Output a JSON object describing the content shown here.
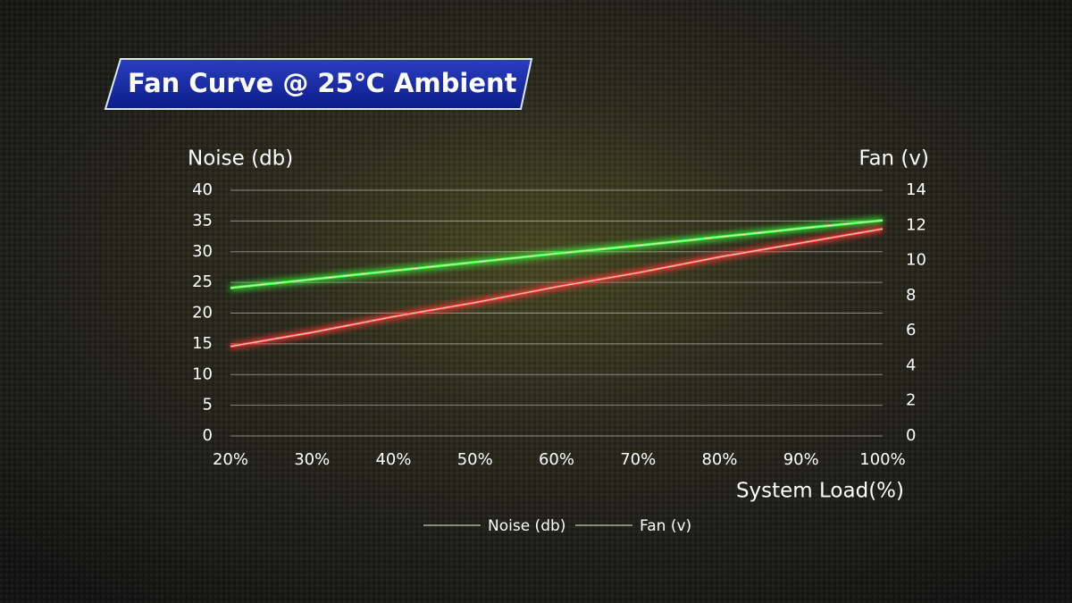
{
  "chart_data": {
    "type": "line",
    "title": "Fan Curve @ 25℃  Ambient",
    "y_label": "Noise (db)",
    "y2_label": "Fan (v)",
    "x_label": "System Load(%)",
    "categories": [
      "20%",
      "30%",
      "40%",
      "50%",
      "60%",
      "70%",
      "80%",
      "90%",
      "100%"
    ],
    "series": [
      {
        "name": "Noise (db)",
        "color": "#3cff3c",
        "values": [
          24.1,
          25.5,
          26.9,
          28.3,
          29.7,
          31.0,
          32.4,
          33.8,
          35.1
        ]
      },
      {
        "name": "Fan (v)",
        "color": "#ff3c3c",
        "axis": "y2",
        "values": [
          5.1,
          5.9,
          6.8,
          7.6,
          8.5,
          9.3,
          10.2,
          11.0,
          11.8
        ]
      }
    ],
    "ylim": [
      0,
      40
    ],
    "yticks": [
      0,
      5,
      10,
      15,
      20,
      25,
      30,
      35,
      40
    ],
    "y2lim": [
      0,
      14
    ],
    "y2ticks": [
      0,
      2,
      4,
      6,
      8,
      10,
      12,
      14
    ],
    "grid": true
  }
}
